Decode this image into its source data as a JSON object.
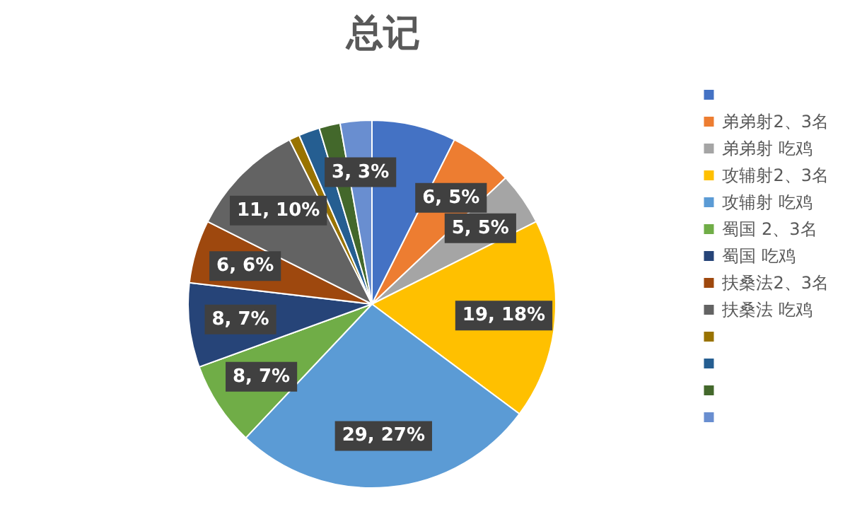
{
  "chart_data": {
    "type": "pie",
    "title": "总记",
    "categories": [
      null,
      "弟弟射2、3名",
      "弟弟射 吃鸡",
      "攻辅射2、3名",
      "攻辅射 吃鸡",
      "蜀国 2、3名",
      "蜀国 吃鸡",
      "扶桑法2、3名",
      "扶桑法 吃鸡",
      null,
      null,
      null,
      null
    ],
    "values": [
      8,
      6,
      5,
      19,
      29,
      8,
      8,
      6,
      11,
      1,
      2,
      2,
      3
    ],
    "colors": [
      "#4472c4",
      "#ed7d31",
      "#a5a5a5",
      "#ffc000",
      "#5b9bd5",
      "#70ad47",
      "#264478",
      "#9e480e",
      "#636363",
      "#997300",
      "#255e91",
      "#43682b",
      "#698ed0"
    ],
    "value_labels": [
      null,
      "6, 5%",
      "5, 5%",
      "19, 18%",
      "29, 27%",
      "8, 7%",
      "8, 7%",
      "6, 6%",
      "11, 10%",
      null,
      null,
      null,
      "3, 3%"
    ],
    "legend": "right"
  }
}
